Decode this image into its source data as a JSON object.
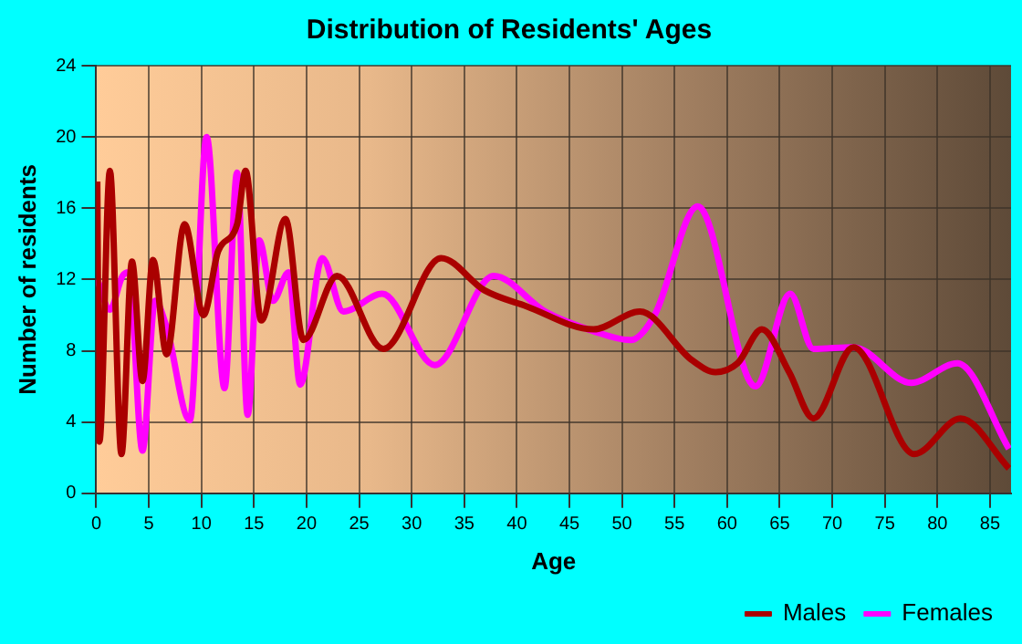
{
  "chart_data": {
    "type": "line",
    "title": "Distribution of Residents' Ages",
    "xlabel": "Age",
    "ylabel": "Number of residents",
    "xlim": [
      0,
      87
    ],
    "xticks": [
      0,
      5,
      10,
      15,
      20,
      25,
      30,
      35,
      40,
      45,
      50,
      55,
      60,
      65,
      70,
      75,
      80,
      85
    ],
    "ylim": [
      0,
      24
    ],
    "yticks": [
      0,
      4,
      8,
      12,
      16,
      20,
      24
    ],
    "grid": true,
    "legend": "bottom right",
    "marker": "none",
    "series": [
      {
        "name": "Males",
        "color": "#aa0000",
        "x": [
          0.1,
          0.3,
          1.3,
          2.4,
          3.4,
          4.4,
          5.4,
          6.7,
          8.4,
          10.2,
          11.6,
          13.4,
          14.2,
          15.7,
          18,
          19.7,
          22.9,
          27.3,
          32.8,
          36.9,
          40.9,
          47.3,
          51.7,
          56.6,
          58.9,
          61,
          63.3,
          65.9,
          68.2,
          72,
          77.8,
          82.2,
          86.8
        ],
        "values": [
          17.5,
          2.9,
          18.1,
          2.2,
          13,
          6.3,
          13.1,
          7.8,
          15.1,
          10,
          13.6,
          15.1,
          18.1,
          9.7,
          15.4,
          8.6,
          12.2,
          8.1,
          13.2,
          11.4,
          10.5,
          9.2,
          10.2,
          7.5,
          6.8,
          7.3,
          9.2,
          6.8,
          4.2,
          8.2,
          2.2,
          4.2,
          1.4
        ]
      },
      {
        "name": "Females",
        "color": "#ff00ff",
        "x": [
          0.1,
          1.3,
          2.5,
          3.1,
          4.4,
          5.6,
          6.7,
          8.9,
          10.5,
          12.2,
          13.4,
          14.4,
          15.5,
          16.8,
          18.3,
          19.4,
          21.5,
          23.5,
          27.2,
          32.2,
          37.8,
          42.7,
          47.3,
          50.8,
          53.1,
          57.2,
          62.7,
          66,
          68.2,
          72,
          77.5,
          81.9,
          86.8
        ],
        "values": [
          12,
          10.3,
          12.2,
          12.4,
          2.4,
          10.8,
          9.3,
          4.1,
          20,
          5.9,
          18,
          4.4,
          14.2,
          10.8,
          12.4,
          6.1,
          13.2,
          10.2,
          11.2,
          7.2,
          12.2,
          10.2,
          9.1,
          8.6,
          10,
          16.1,
          6,
          11.2,
          8.1,
          8.2,
          6.2,
          7.3,
          2.5
        ]
      }
    ]
  }
}
